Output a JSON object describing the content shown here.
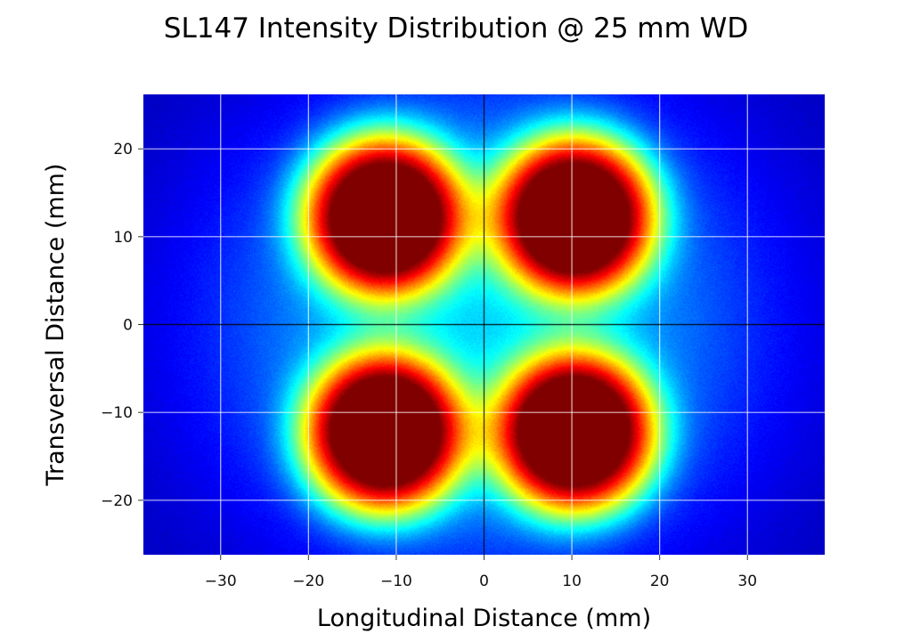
{
  "chart_data": {
    "type": "heatmap",
    "title": "SL147 Intensity Distribution @ 25 mm WD",
    "xlabel": "Longitudinal Distance (mm)",
    "ylabel": "Transversal Distance (mm)",
    "xlim": [
      -38.8,
      38.8
    ],
    "ylim": [
      -26.2,
      26.2
    ],
    "x_ticks": [
      -30,
      -20,
      -10,
      0,
      10,
      20,
      30
    ],
    "y_ticks": [
      -20,
      -10,
      0,
      10,
      20
    ],
    "x_tick_labels": [
      "−30",
      "−20",
      "−10",
      "0",
      "10",
      "20",
      "30"
    ],
    "y_tick_labels": [
      "−20",
      "−10",
      "0",
      "10",
      "20"
    ],
    "grid": true,
    "colormap": "jet",
    "lobes": [
      {
        "x": -11.5,
        "y": 12.5,
        "peak": 1.0
      },
      {
        "x": 10.5,
        "y": 12.5,
        "peak": 1.0
      },
      {
        "x": -11.5,
        "y": -12.5,
        "peak": 1.0
      },
      {
        "x": 10.5,
        "y": -12.5,
        "peak": 1.0
      }
    ]
  }
}
